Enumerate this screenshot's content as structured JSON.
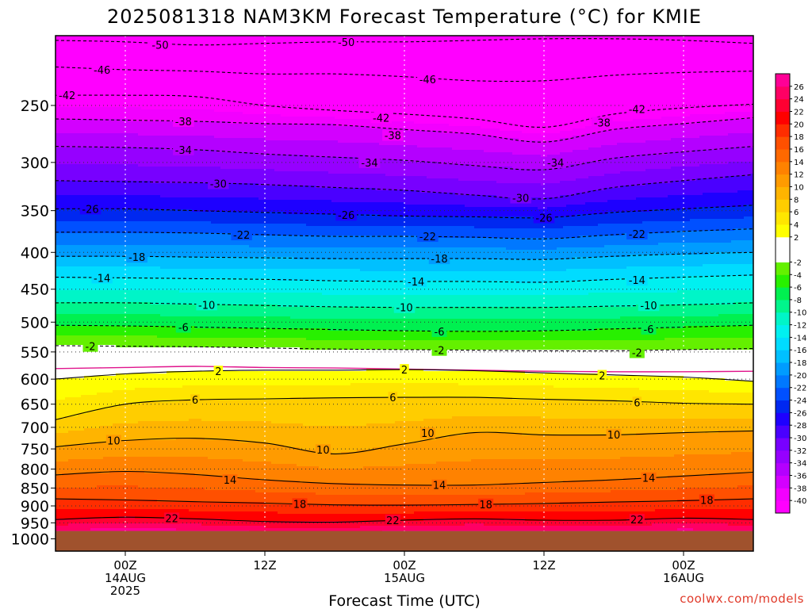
{
  "title": "2025081318 NAM3KM Forecast Temperature (°C) for KMIE",
  "credit": "coolwx.com/models",
  "chart_data": {
    "type": "heatmap",
    "title": "2025081318 NAM3KM Forecast Temperature (°C) for KMIE",
    "xlabel": "Forecast Time (UTC)",
    "ylabel": "",
    "x_range_hours": [
      0,
      60
    ],
    "y_scale": "log-pressure (hPa), inverted",
    "y_range_hpa": [
      1040,
      200
    ],
    "surface_pressure_hpa": 975,
    "x_ticks": [
      {
        "hour": 6,
        "lines": [
          "00Z",
          "14AUG",
          "2025"
        ]
      },
      {
        "hour": 18,
        "lines": [
          "12Z"
        ]
      },
      {
        "hour": 30,
        "lines": [
          "00Z",
          "15AUG"
        ]
      },
      {
        "hour": 42,
        "lines": [
          "12Z"
        ]
      },
      {
        "hour": 54,
        "lines": [
          "00Z",
          "16AUG"
        ]
      }
    ],
    "y_ticks": [
      250,
      300,
      350,
      400,
      450,
      500,
      550,
      600,
      650,
      700,
      750,
      800,
      850,
      900,
      950,
      1000
    ],
    "grid": "dotted",
    "colorbar": {
      "labels": [
        26,
        22,
        18,
        14,
        10,
        6,
        2,
        -2,
        -6,
        -10,
        -14,
        -18,
        -22,
        -26,
        -30,
        -34,
        -38
      ],
      "minor_labels": [
        24,
        20,
        16,
        12,
        8,
        4,
        -4,
        -8,
        -12,
        -16,
        -20,
        -24,
        -28,
        -32,
        -36,
        -40
      ],
      "bands": [
        {
          "from": -48,
          "to": -40,
          "color": "#ff00ff"
        },
        {
          "from": -40,
          "to": -38,
          "color": "#f200ff"
        },
        {
          "from": -38,
          "to": -36,
          "color": "#d300ff"
        },
        {
          "from": -36,
          "to": -34,
          "color": "#b400ff"
        },
        {
          "from": -34,
          "to": -32,
          "color": "#9600ff"
        },
        {
          "from": -32,
          "to": -30,
          "color": "#7800ff"
        },
        {
          "from": -30,
          "to": -28,
          "color": "#4a00ff"
        },
        {
          "from": -28,
          "to": -26,
          "color": "#1e00ff"
        },
        {
          "from": -26,
          "to": -24,
          "color": "#0028f0"
        },
        {
          "from": -24,
          "to": -22,
          "color": "#0050ff"
        },
        {
          "from": -22,
          "to": -20,
          "color": "#0078ff"
        },
        {
          "from": -20,
          "to": -18,
          "color": "#009cff"
        },
        {
          "from": -18,
          "to": -16,
          "color": "#00c0ff"
        },
        {
          "from": -16,
          "to": -14,
          "color": "#00dcff"
        },
        {
          "from": -14,
          "to": -12,
          "color": "#00f0f0"
        },
        {
          "from": -12,
          "to": -10,
          "color": "#00f5c8"
        },
        {
          "from": -10,
          "to": -8,
          "color": "#00f58c"
        },
        {
          "from": -8,
          "to": -6,
          "color": "#00f050"
        },
        {
          "from": -6,
          "to": -4,
          "color": "#28f000"
        },
        {
          "from": -4,
          "to": -2,
          "color": "#64f000"
        },
        {
          "from": -2,
          "to": 2,
          "color": "#ffffff"
        },
        {
          "from": 2,
          "to": 4,
          "color": "#ffff00"
        },
        {
          "from": 4,
          "to": 6,
          "color": "#ffe600"
        },
        {
          "from": 6,
          "to": 8,
          "color": "#ffcd00"
        },
        {
          "from": 8,
          "to": 10,
          "color": "#ffb400"
        },
        {
          "from": 10,
          "to": 12,
          "color": "#ff9b00"
        },
        {
          "from": 12,
          "to": 14,
          "color": "#ff8200"
        },
        {
          "from": 14,
          "to": 16,
          "color": "#ff6900"
        },
        {
          "from": 16,
          "to": 18,
          "color": "#ff5000"
        },
        {
          "from": 18,
          "to": 20,
          "color": "#ff2d00"
        },
        {
          "from": 20,
          "to": 22,
          "color": "#ff0000"
        },
        {
          "from": 22,
          "to": 24,
          "color": "#ff0032"
        },
        {
          "from": 24,
          "to": 26,
          "color": "#ff0064"
        },
        {
          "from": 26,
          "to": 30,
          "color": "#ff0096"
        }
      ],
      "ground_color": "#a0522d"
    },
    "isotherm_times": [
      0,
      6,
      12,
      18,
      24,
      30,
      36,
      42,
      48,
      54,
      60
    ],
    "isotherms": [
      {
        "temp": -50,
        "pressure": [
          203,
          204,
          206,
          205,
          204,
          204,
          203,
          202,
          202,
          203,
          205
        ],
        "labels": [
          {
            "hour": 9,
            "pressure": 206
          },
          {
            "hour": 25,
            "pressure": 204
          }
        ]
      },
      {
        "temp": -46,
        "pressure": [
          221,
          223,
          224,
          226,
          226,
          228,
          231,
          231,
          227,
          225,
          224
        ],
        "labels": [
          {
            "hour": 4,
            "pressure": 223
          },
          {
            "hour": 32,
            "pressure": 230
          }
        ]
      },
      {
        "temp": -42,
        "pressure": [
          242,
          242,
          243,
          250,
          254,
          257,
          261,
          268,
          257,
          252,
          249
        ],
        "labels": [
          {
            "hour": 1,
            "pressure": 242
          },
          {
            "hour": 28,
            "pressure": 260
          },
          {
            "hour": 50,
            "pressure": 253
          }
        ]
      },
      {
        "temp": -38,
        "pressure": [
          261,
          262,
          263,
          265,
          266,
          270,
          274,
          281,
          270,
          265,
          260
        ],
        "labels": [
          {
            "hour": 11,
            "pressure": 263
          },
          {
            "hour": 29,
            "pressure": 275
          },
          {
            "hour": 47,
            "pressure": 264
          }
        ]
      },
      {
        "temp": -34,
        "pressure": [
          285,
          286,
          288,
          292,
          295,
          298,
          303,
          307,
          296,
          290,
          285
        ],
        "labels": [
          {
            "hour": 11,
            "pressure": 288
          },
          {
            "hour": 27,
            "pressure": 300
          },
          {
            "hour": 43,
            "pressure": 300
          }
        ]
      },
      {
        "temp": -30,
        "pressure": [
          318,
          319,
          320,
          322,
          325,
          328,
          333,
          337,
          325,
          318,
          312
        ],
        "labels": [
          {
            "hour": 14,
            "pressure": 321
          },
          {
            "hour": 40,
            "pressure": 336
          }
        ]
      },
      {
        "temp": -26,
        "pressure": [
          348,
          348,
          350,
          352,
          354,
          356,
          357,
          358,
          352,
          348,
          344
        ],
        "labels": [
          {
            "hour": 3,
            "pressure": 348
          },
          {
            "hour": 25,
            "pressure": 355
          },
          {
            "hour": 42,
            "pressure": 358
          }
        ]
      },
      {
        "temp": -22,
        "pressure": [
          375,
          375,
          376,
          378,
          380,
          380,
          381,
          383,
          378,
          374,
          371
        ],
        "labels": [
          {
            "hour": 16,
            "pressure": 378
          },
          {
            "hour": 32,
            "pressure": 380
          },
          {
            "hour": 50,
            "pressure": 377
          }
        ]
      },
      {
        "temp": -18,
        "pressure": [
          405,
          405,
          406,
          407,
          408,
          408,
          408,
          409,
          405,
          402,
          400
        ],
        "labels": [
          {
            "hour": 7,
            "pressure": 406
          },
          {
            "hour": 33,
            "pressure": 408
          }
        ]
      },
      {
        "temp": -14,
        "pressure": [
          433,
          434,
          435,
          436,
          438,
          439,
          439,
          440,
          436,
          433,
          430
        ],
        "labels": [
          {
            "hour": 4,
            "pressure": 434
          },
          {
            "hour": 31,
            "pressure": 439
          },
          {
            "hour": 50,
            "pressure": 437
          }
        ]
      },
      {
        "temp": -10,
        "pressure": [
          470,
          470,
          472,
          474,
          476,
          477,
          477,
          477,
          475,
          473,
          470
        ],
        "labels": [
          {
            "hour": 13,
            "pressure": 473
          },
          {
            "hour": 30,
            "pressure": 477
          },
          {
            "hour": 51,
            "pressure": 474
          }
        ]
      },
      {
        "temp": -6,
        "pressure": [
          505,
          506,
          508,
          510,
          512,
          514,
          515,
          514,
          511,
          508,
          505
        ],
        "labels": [
          {
            "hour": 11,
            "pressure": 508
          },
          {
            "hour": 33,
            "pressure": 515
          },
          {
            "hour": 51,
            "pressure": 511
          }
        ]
      },
      {
        "temp": -2,
        "pressure": [
          539,
          540,
          541,
          543,
          545,
          546,
          547,
          548,
          548,
          546,
          544
        ],
        "labels": [
          {
            "hour": 3,
            "pressure": 540
          },
          {
            "hour": 33,
            "pressure": 547
          },
          {
            "hour": 50,
            "pressure": 551
          }
        ]
      },
      {
        "temp": 2,
        "pressure": [
          600,
          590,
          585,
          583,
          583,
          582,
          584,
          588,
          592,
          596,
          604
        ],
        "labels": [
          {
            "hour": 14,
            "pressure": 585
          },
          {
            "hour": 30,
            "pressure": 582
          },
          {
            "hour": 47,
            "pressure": 593
          }
        ]
      },
      {
        "temp": 6,
        "pressure": [
          683,
          650,
          641,
          639,
          637,
          636,
          636,
          640,
          643,
          648,
          650
        ],
        "labels": [
          {
            "hour": 12,
            "pressure": 641
          },
          {
            "hour": 29,
            "pressure": 636
          },
          {
            "hour": 50,
            "pressure": 646
          }
        ]
      },
      {
        "temp": 10,
        "pressure": [
          745,
          730,
          725,
          736,
          762,
          738,
          712,
          717,
          717,
          712,
          708
        ],
        "labels": [
          {
            "hour": 5,
            "pressure": 730
          },
          {
            "hour": 23,
            "pressure": 752
          },
          {
            "hour": 32,
            "pressure": 713
          },
          {
            "hour": 48,
            "pressure": 716
          }
        ]
      },
      {
        "temp": 14,
        "pressure": [
          815,
          806,
          814,
          828,
          838,
          842,
          842,
          835,
          828,
          818,
          808
        ],
        "labels": [
          {
            "hour": 15,
            "pressure": 828
          },
          {
            "hour": 33,
            "pressure": 842
          },
          {
            "hour": 51,
            "pressure": 823
          }
        ]
      },
      {
        "temp": 18,
        "pressure": [
          880,
          883,
          888,
          892,
          897,
          898,
          896,
          893,
          889,
          885,
          880
        ],
        "labels": [
          {
            "hour": 21,
            "pressure": 894
          },
          {
            "hour": 37,
            "pressure": 895
          },
          {
            "hour": 56,
            "pressure": 883
          }
        ]
      },
      {
        "temp": 22,
        "pressure": [
          940,
          933,
          938,
          946,
          948,
          942,
          938,
          942,
          942,
          936,
          940
        ],
        "labels": [
          {
            "hour": 10,
            "pressure": 936
          },
          {
            "hour": 29,
            "pressure": 942
          },
          {
            "hour": 50,
            "pressure": 940
          }
        ]
      }
    ],
    "freezing_line_pressure": [
      580,
      578,
      576,
      578,
      579,
      581,
      583,
      585,
      586,
      586,
      585
    ]
  }
}
